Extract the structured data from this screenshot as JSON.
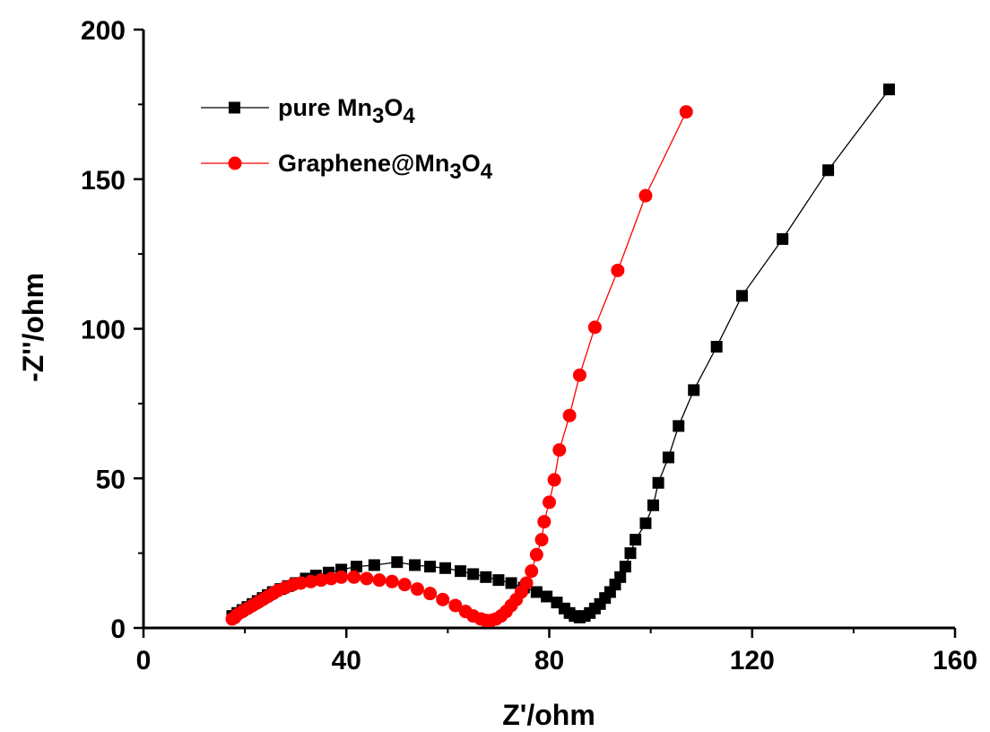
{
  "chart_data": {
    "type": "scatter",
    "xlabel": "Z'/ohm",
    "ylabel": "-Z''/ohm",
    "xlim": [
      0,
      160
    ],
    "ylim": [
      0,
      200
    ],
    "x_ticks": [
      "0",
      "40",
      "80",
      "120",
      "160"
    ],
    "y_ticks": [
      "0",
      "50",
      "100",
      "150",
      "200"
    ],
    "legend_position": "top-left",
    "grid": false,
    "series": [
      {
        "name": "pure Mn3O4",
        "name_parts": {
          "base": "pure Mn",
          "sub1": "3",
          "mid": "O",
          "sub2": "4"
        },
        "color": "#000000",
        "marker": "square",
        "points": [
          [
            17.5,
            4
          ],
          [
            18.5,
            5
          ],
          [
            19.5,
            6
          ],
          [
            20.5,
            7
          ],
          [
            21.5,
            8
          ],
          [
            22.5,
            9
          ],
          [
            23.5,
            10
          ],
          [
            24.5,
            11
          ],
          [
            25.5,
            12
          ],
          [
            27,
            13
          ],
          [
            28.5,
            14
          ],
          [
            30,
            15
          ],
          [
            32,
            16.5
          ],
          [
            34,
            17.5
          ],
          [
            36.5,
            18.5
          ],
          [
            39,
            19.5
          ],
          [
            42,
            20.5
          ],
          [
            45.5,
            21
          ],
          [
            50,
            22
          ],
          [
            53.5,
            21
          ],
          [
            56.5,
            20.5
          ],
          [
            59.5,
            20
          ],
          [
            62.5,
            19
          ],
          [
            65,
            18
          ],
          [
            67.5,
            17
          ],
          [
            70,
            16
          ],
          [
            72.5,
            15
          ],
          [
            75,
            13.5
          ],
          [
            77.5,
            12
          ],
          [
            79.5,
            10.5
          ],
          [
            81.5,
            8.5
          ],
          [
            83,
            6.5
          ],
          [
            84,
            5
          ],
          [
            85,
            4
          ],
          [
            86,
            3.5
          ],
          [
            87,
            4
          ],
          [
            88,
            5
          ],
          [
            89,
            6.5
          ],
          [
            90,
            8
          ],
          [
            91,
            10
          ],
          [
            92,
            12
          ],
          [
            93,
            14.5
          ],
          [
            94,
            17
          ],
          [
            95,
            20.5
          ],
          [
            96,
            25
          ],
          [
            97,
            29.5
          ],
          [
            99,
            35
          ],
          [
            100.5,
            41
          ],
          [
            101.5,
            48.5
          ],
          [
            103.5,
            57
          ],
          [
            105.5,
            67.5
          ],
          [
            108.5,
            79.5
          ],
          [
            113,
            94
          ],
          [
            118,
            111
          ],
          [
            126,
            130
          ],
          [
            135,
            153
          ],
          [
            147,
            180
          ]
        ]
      },
      {
        "name": "Graphene@Mn3O4",
        "name_parts": {
          "base": "Graphene@Mn",
          "sub1": "3",
          "mid": "O",
          "sub2": "4"
        },
        "color": "#ff0000",
        "marker": "circle",
        "points": [
          [
            17.5,
            3
          ],
          [
            18,
            3.5
          ],
          [
            18.5,
            4.5
          ],
          [
            19.5,
            5.5
          ],
          [
            20.5,
            6.5
          ],
          [
            21.5,
            7.5
          ],
          [
            22.5,
            8.5
          ],
          [
            23.5,
            9.5
          ],
          [
            24.5,
            10.5
          ],
          [
            25.5,
            11.5
          ],
          [
            26.5,
            12.5
          ],
          [
            28,
            13.5
          ],
          [
            29.5,
            14.5
          ],
          [
            31,
            15
          ],
          [
            33,
            15.5
          ],
          [
            35,
            16
          ],
          [
            37,
            16.5
          ],
          [
            39,
            17
          ],
          [
            41.5,
            17
          ],
          [
            44,
            16.5
          ],
          [
            46.5,
            16
          ],
          [
            49,
            15.5
          ],
          [
            51.5,
            14.5
          ],
          [
            54,
            13
          ],
          [
            56.5,
            11.5
          ],
          [
            59,
            9.5
          ],
          [
            61.5,
            7.5
          ],
          [
            63.5,
            5.5
          ],
          [
            65,
            4
          ],
          [
            66.5,
            3
          ],
          [
            67.5,
            2.5
          ],
          [
            68.5,
            2.5
          ],
          [
            69.5,
            3
          ],
          [
            70.5,
            4
          ],
          [
            71.5,
            5.5
          ],
          [
            72.5,
            7.5
          ],
          [
            73.5,
            9.5
          ],
          [
            74.5,
            12
          ],
          [
            75.5,
            15
          ],
          [
            76.5,
            19
          ],
          [
            77.5,
            24.5
          ],
          [
            78.5,
            29.5
          ],
          [
            79,
            35.5
          ],
          [
            80,
            42
          ],
          [
            81,
            49.5
          ],
          [
            82,
            59.5
          ],
          [
            84,
            71
          ],
          [
            86,
            84.5
          ],
          [
            89,
            100.5
          ],
          [
            93.5,
            119.5
          ],
          [
            99,
            144.5
          ],
          [
            107,
            172.5
          ]
        ]
      }
    ]
  }
}
